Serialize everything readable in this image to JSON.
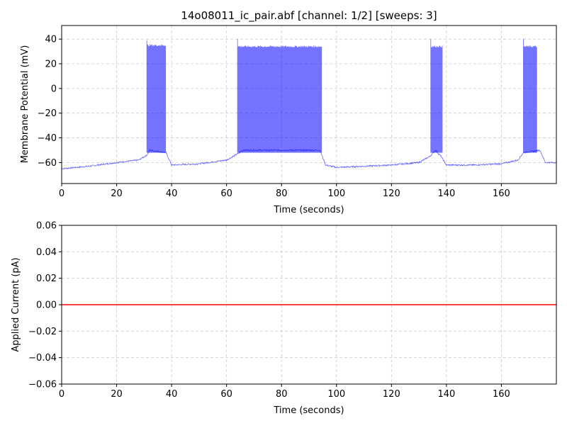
{
  "figure": {
    "title": "14o08011_ic_pair.abf [channel: 1/2] [sweeps: 3]"
  },
  "colors": {
    "voltage_trace": "#0000ff",
    "current_trace": "#ff0000",
    "grid": "#cccccc",
    "axes": "#000000"
  },
  "chart_data": [
    {
      "type": "line",
      "panel": "top",
      "title": "14o08011_ic_pair.abf [channel: 1/2] [sweeps: 3]",
      "xlabel": "Time (seconds)",
      "ylabel": "Membrane Potential (mV)",
      "xlim": [
        0,
        180
      ],
      "ylim": [
        -77,
        51
      ],
      "xticks": [
        0,
        20,
        40,
        60,
        80,
        100,
        120,
        140,
        160
      ],
      "yticks": [
        -60,
        -40,
        -20,
        0,
        20,
        40
      ],
      "grid": true,
      "series": [
        {
          "color": "#0000ff",
          "baseline": [
            [
              0,
              -65
            ],
            [
              10,
              -63
            ],
            [
              20,
              -60
            ],
            [
              28,
              -58
            ],
            [
              31,
              -54
            ],
            [
              32,
              -50
            ],
            [
              38,
              -52
            ],
            [
              40,
              -62
            ],
            [
              50,
              -61
            ],
            [
              60,
              -58
            ],
            [
              64,
              -53
            ],
            [
              66,
              -50
            ],
            [
              94,
              -50
            ],
            [
              96,
              -62
            ],
            [
              100,
              -64
            ],
            [
              110,
              -63
            ],
            [
              120,
              -62
            ],
            [
              130,
              -60
            ],
            [
              134,
              -55
            ],
            [
              136,
              -50
            ],
            [
              138,
              -55
            ],
            [
              140,
              -62
            ],
            [
              150,
              -62
            ],
            [
              160,
              -61
            ],
            [
              166,
              -58
            ],
            [
              168,
              -52
            ],
            [
              174,
              -50
            ],
            [
              176,
              -60
            ],
            [
              180,
              -60
            ]
          ],
          "bursts": [
            {
              "start": 31.0,
              "end": 38.0,
              "peak_first": 39,
              "peak": 35,
              "trough": -52
            },
            {
              "start": 64.0,
              "end": 94.7,
              "peak_first": 40,
              "peak": 34,
              "trough": -52
            },
            {
              "start": 134.3,
              "end": 138.5,
              "peak_first": 40,
              "peak": 34,
              "trough": -52
            },
            {
              "start": 168.0,
              "end": 173.0,
              "peak_first": 40,
              "peak": 34,
              "trough": -52
            }
          ]
        }
      ]
    },
    {
      "type": "line",
      "panel": "bottom",
      "xlabel": "Time (seconds)",
      "ylabel": "Applied Current (pA)",
      "xlim": [
        0,
        180
      ],
      "ylim": [
        -0.06,
        0.06
      ],
      "xticks": [
        0,
        20,
        40,
        60,
        80,
        100,
        120,
        140,
        160
      ],
      "yticks": [
        -0.06,
        -0.04,
        -0.02,
        0.0,
        0.02,
        0.04,
        0.06
      ],
      "ytick_labels": [
        "−0.06",
        "−0.04",
        "−0.02",
        "0.00",
        "0.02",
        "0.04",
        "0.06"
      ],
      "grid": true,
      "series": [
        {
          "color": "#ff0000",
          "x": [
            0,
            180
          ],
          "y": [
            0,
            0
          ]
        }
      ]
    }
  ]
}
